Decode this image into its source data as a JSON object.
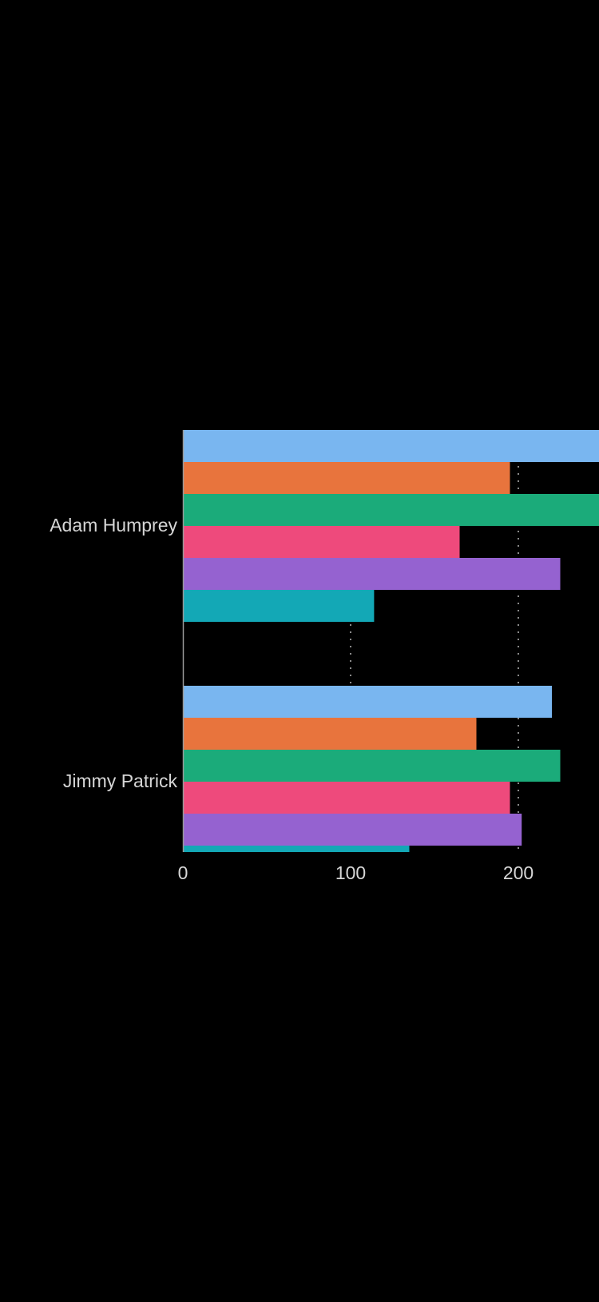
{
  "chart_data": {
    "type": "bar",
    "orientation": "horizontal",
    "categories": [
      "Adam Humprey",
      "Jimmy Patrick"
    ],
    "series": [
      {
        "values": [
          250,
          220
        ],
        "color": "#79b6f0"
      },
      {
        "values": [
          195,
          175
        ],
        "color": "#e8743d"
      },
      {
        "values": [
          250,
          225
        ],
        "color": "#1bab7a"
      },
      {
        "values": [
          165,
          195
        ],
        "color": "#ee4a7c"
      },
      {
        "values": [
          225,
          202
        ],
        "color": "#9562d0"
      },
      {
        "values": [
          114,
          135
        ],
        "color": "#13a8b6"
      }
    ],
    "x_ticks": [
      "0",
      "100",
      "200"
    ],
    "xlim": [
      0,
      250
    ],
    "grid": "vertical dotted",
    "title": "",
    "xlabel": "",
    "ylabel": "",
    "colors": {
      "background": "#000000",
      "text": "#d6d6d6",
      "grid": "#8a8a8a",
      "axis": "#9a9a9a"
    }
  }
}
